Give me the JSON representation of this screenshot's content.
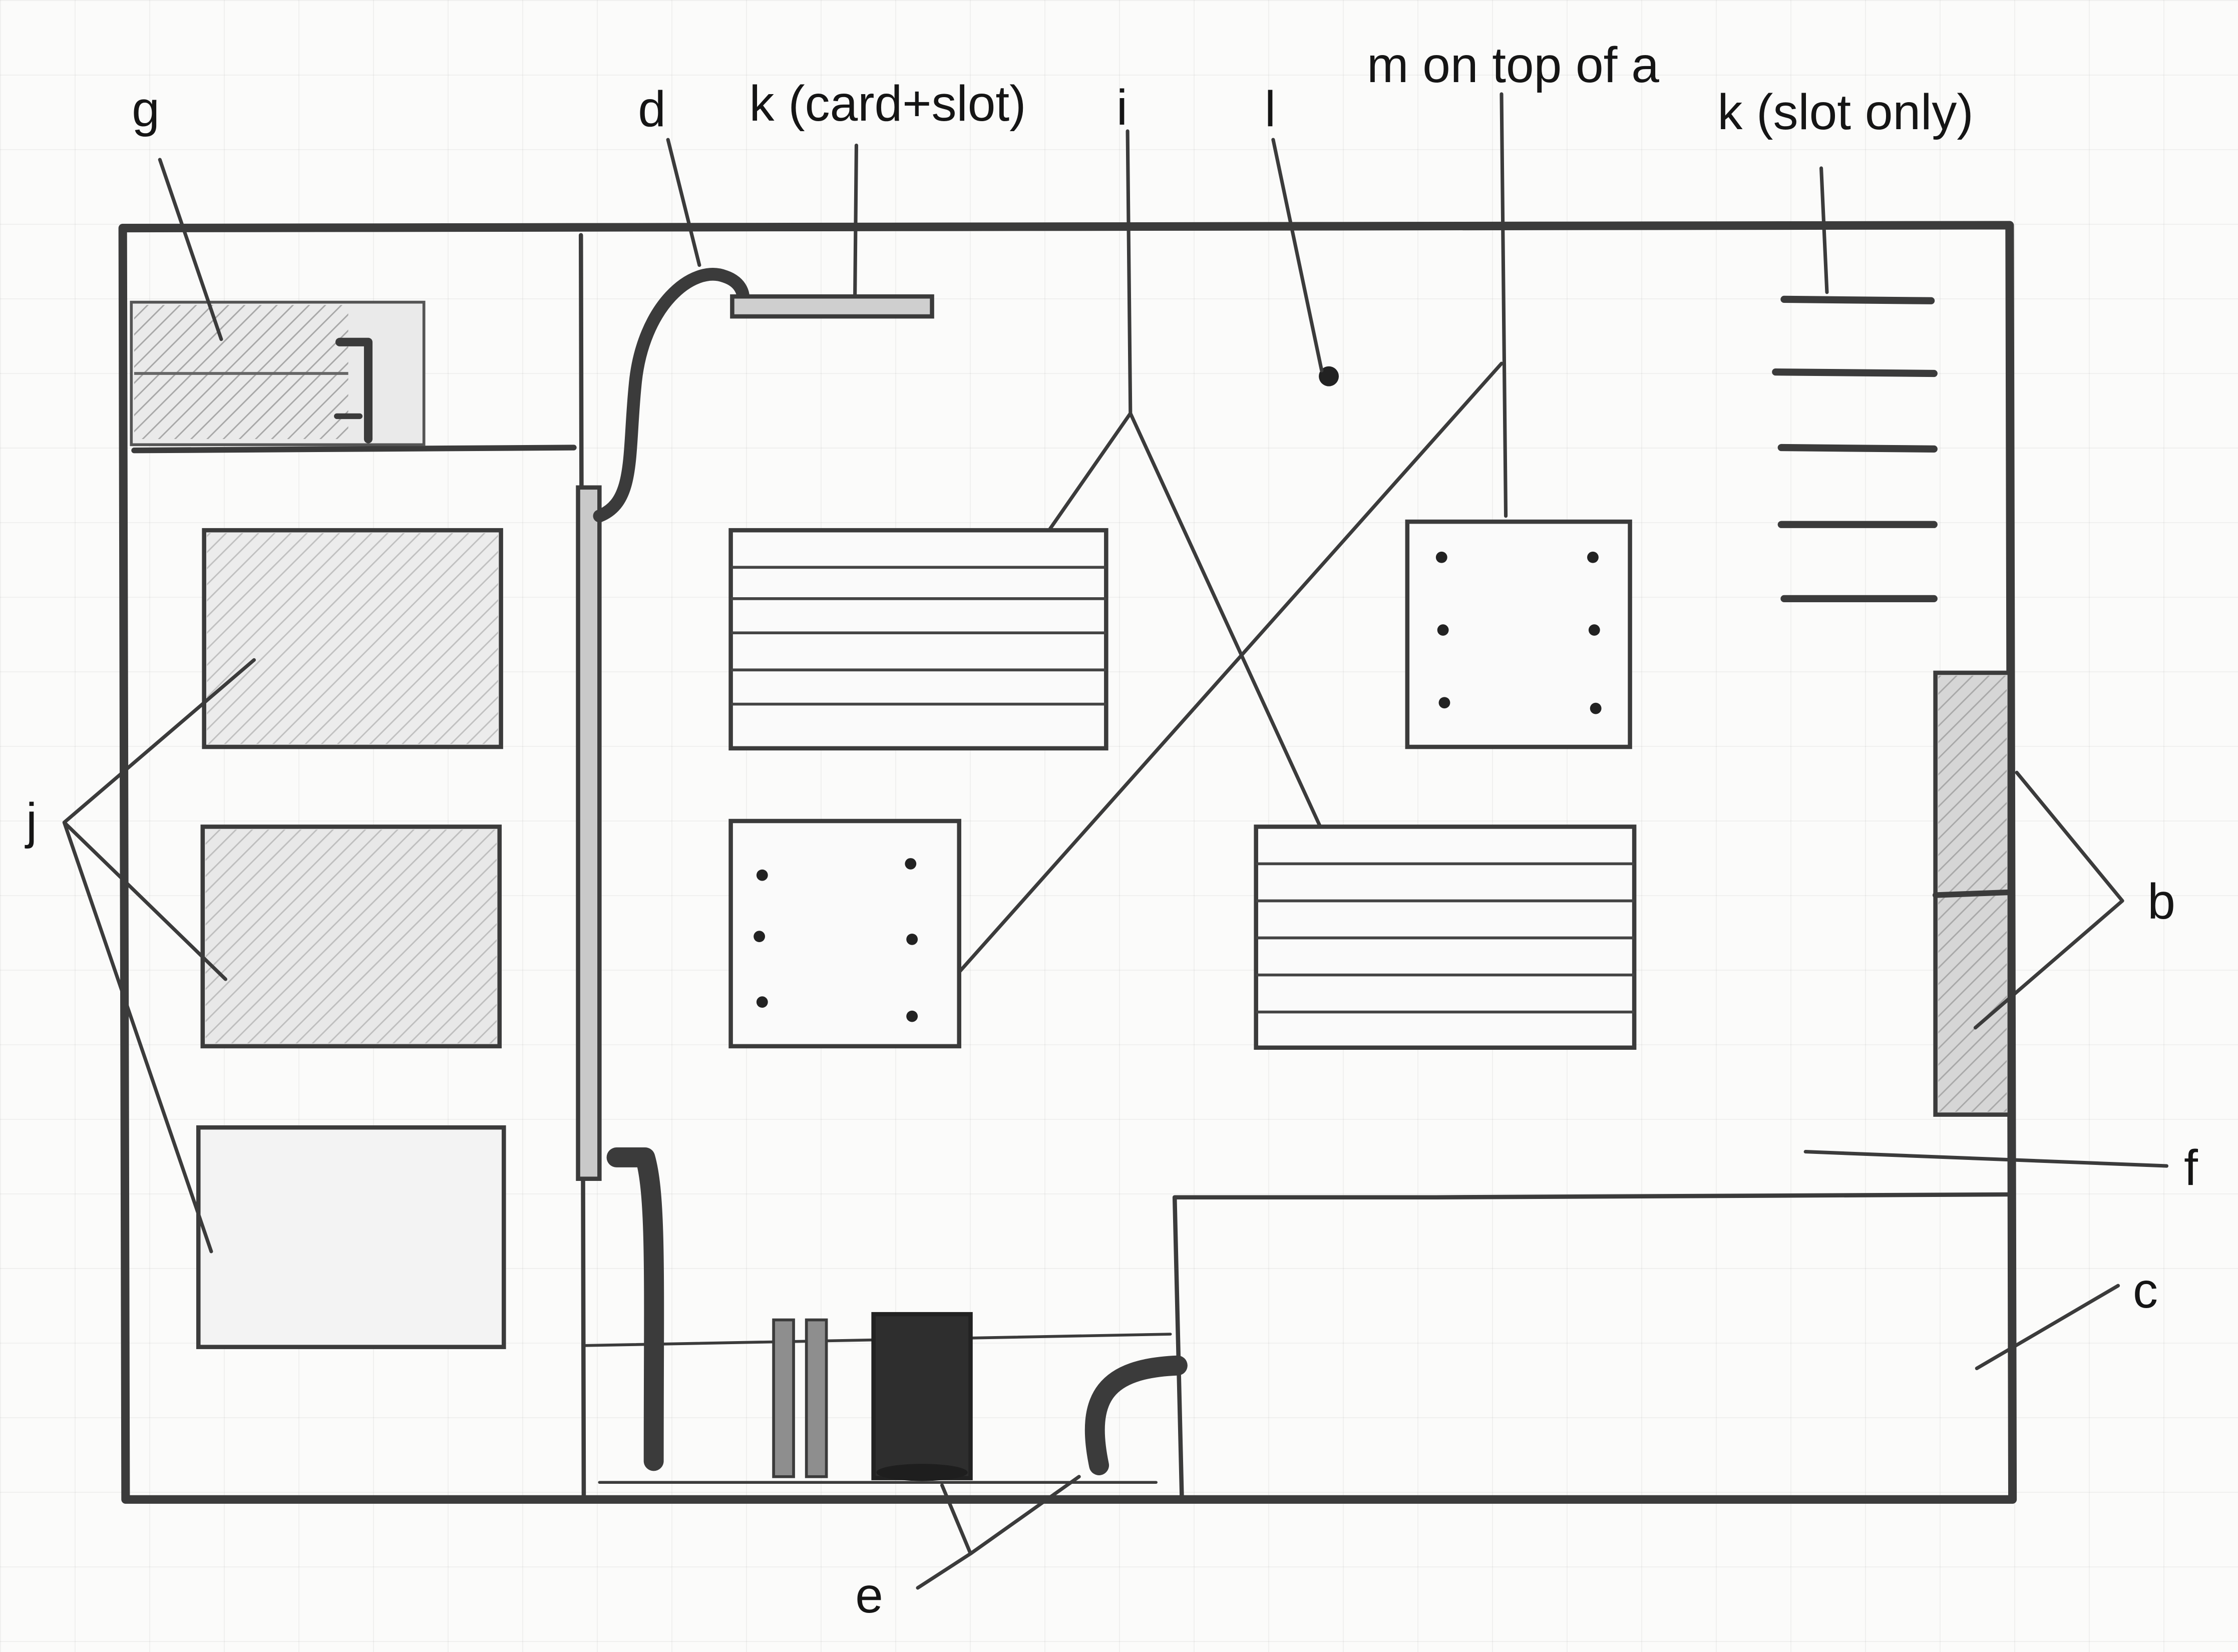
{
  "labels": {
    "g": "g",
    "d": "d",
    "k_card_slot": "k (card+slot)",
    "i": "i",
    "l": "l",
    "m": "m on top of a",
    "k_slot_only": "k (slot only)",
    "j": "j",
    "b": "b",
    "f": "f",
    "c": "c",
    "e": "e"
  }
}
